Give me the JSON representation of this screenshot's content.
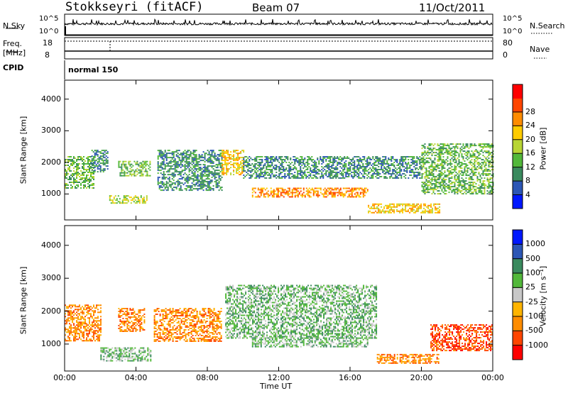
{
  "header": {
    "station": "Stokkseyri (fitACF)",
    "beam": "Beam 07",
    "date": "11/Oct/2011"
  },
  "nsky_panel": {
    "left_label": "N.Sky",
    "right_label": "N.Search",
    "left_ticks": [
      "10^5",
      "10^0"
    ],
    "right_ticks": [
      "10^5",
      "10^0"
    ]
  },
  "freq_panel": {
    "left_label_line1": "Freq.",
    "left_label_line2": "[MHz]",
    "right_label": "Nave",
    "left_ticks": [
      "18",
      "8"
    ],
    "right_ticks": [
      "80",
      "0"
    ]
  },
  "cpid": {
    "label": "CPID",
    "value": "normal 150"
  },
  "chart_data": [
    {
      "type": "heatmap",
      "name": "power",
      "ylabel": "Slant Range [km]",
      "ylim": [
        180,
        4600
      ],
      "yticks": [
        "1000",
        "2000",
        "3000",
        "4000"
      ],
      "ytick_values": [
        1000,
        2000,
        3000,
        4000
      ],
      "xlim_hours": [
        0,
        24
      ],
      "colorbar_label": "Power [dB]",
      "colorbar_ticks": [
        "4",
        "8",
        "12",
        "16",
        "20",
        "24",
        "28"
      ],
      "colorbar_colors": [
        "#0018ff",
        "#2c56b5",
        "#3a8a5e",
        "#52b83a",
        "#b8d534",
        "#ffcc00",
        "#ff8c00",
        "#ff4500",
        "#ff0000"
      ],
      "echo_regions_hours_km": [
        {
          "x": [
            0.0,
            1.6
          ],
          "y": [
            1200,
            2200
          ],
          "level": "16"
        },
        {
          "x": [
            1.5,
            2.4
          ],
          "y": [
            1700,
            2400
          ],
          "level": "12"
        },
        {
          "x": [
            2.5,
            4.6
          ],
          "y": [
            700,
            960
          ],
          "level": "20"
        },
        {
          "x": [
            3.0,
            4.8
          ],
          "y": [
            1600,
            2050
          ],
          "level": "16"
        },
        {
          "x": [
            5.2,
            8.8
          ],
          "y": [
            1100,
            2400
          ],
          "level": "12"
        },
        {
          "x": [
            8.8,
            10.0
          ],
          "y": [
            1600,
            2400
          ],
          "level": "24"
        },
        {
          "x": [
            10.0,
            20.0
          ],
          "y": [
            1500,
            2200
          ],
          "level": "12"
        },
        {
          "x": [
            10.5,
            17.0
          ],
          "y": [
            900,
            1200
          ],
          "level": "28"
        },
        {
          "x": [
            17.0,
            21.0
          ],
          "y": [
            400,
            700
          ],
          "level": "24"
        },
        {
          "x": [
            20.0,
            24.0
          ],
          "y": [
            1000,
            2600
          ],
          "level": "16"
        }
      ]
    },
    {
      "type": "heatmap",
      "name": "velocity",
      "ylabel": "Slant Range [km]",
      "ylim": [
        180,
        4600
      ],
      "yticks": [
        "1000",
        "2000",
        "3000",
        "4000"
      ],
      "ytick_values": [
        1000,
        2000,
        3000,
        4000
      ],
      "xlabel": "Time UT",
      "xticks": [
        "00:00",
        "04:00",
        "08:00",
        "12:00",
        "16:00",
        "20:00",
        "00:00"
      ],
      "xtick_hours": [
        0,
        4,
        8,
        12,
        16,
        20,
        24
      ],
      "xlim_hours": [
        0,
        24
      ],
      "colorbar_label": "Velocity [m s^-1]",
      "colorbar_ticks": [
        "1000",
        "500",
        "100",
        "25",
        "-25",
        "-100",
        "-500",
        "-1000"
      ],
      "colorbar_colors": [
        "#0018ff",
        "#2c56b5",
        "#3a8a5e",
        "#52b83a",
        "#c8c8c8",
        "#ffb400",
        "#ff8c00",
        "#ff4500",
        "#ff0000"
      ],
      "echo_regions_hours_km": [
        {
          "x": [
            0.0,
            2.0
          ],
          "y": [
            1100,
            2200
          ],
          "level": "-500"
        },
        {
          "x": [
            2.0,
            4.8
          ],
          "y": [
            500,
            900
          ],
          "level": "25"
        },
        {
          "x": [
            3.0,
            4.5
          ],
          "y": [
            1400,
            2100
          ],
          "level": "-500"
        },
        {
          "x": [
            5.0,
            8.8
          ],
          "y": [
            1100,
            2100
          ],
          "level": "-500"
        },
        {
          "x": [
            9.0,
            17.5
          ],
          "y": [
            1200,
            2800
          ],
          "level": "25"
        },
        {
          "x": [
            10.5,
            17.0
          ],
          "y": [
            900,
            1200
          ],
          "level": "25"
        },
        {
          "x": [
            17.5,
            21.0
          ],
          "y": [
            400,
            700
          ],
          "level": "-500"
        },
        {
          "x": [
            20.5,
            24.0
          ],
          "y": [
            800,
            1600
          ],
          "level": "-1000"
        }
      ]
    }
  ]
}
